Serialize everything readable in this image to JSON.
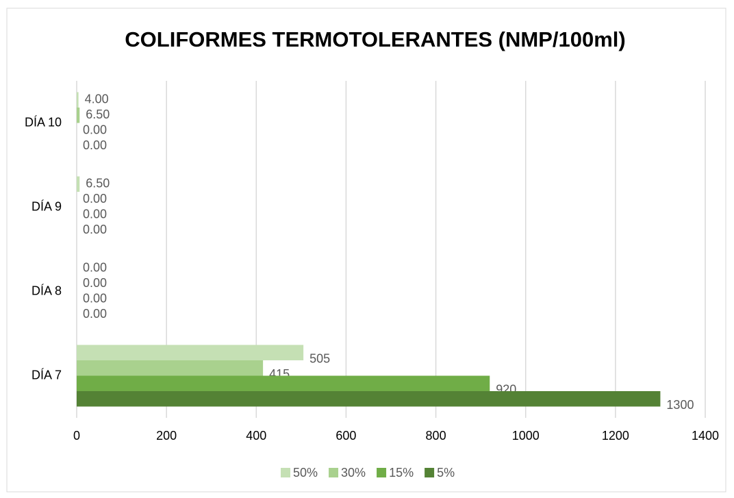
{
  "chart_data": {
    "type": "bar",
    "orientation": "horizontal",
    "title": "COLIFORMES TERMOTOLERANTES (NMP/100ml)",
    "categories": [
      "DÍA 7",
      "DÍA 8",
      "DÍA 9",
      "DÍA 10"
    ],
    "series": [
      {
        "name": "50%",
        "color": "#c5e0b4",
        "values": [
          505,
          0,
          6.5,
          4
        ],
        "value_labels": [
          "505",
          "0.00",
          "6.50",
          "4.00"
        ]
      },
      {
        "name": "30%",
        "color": "#a9d18e",
        "values": [
          415,
          0,
          0,
          6.5
        ],
        "value_labels": [
          "415",
          "0.00",
          "0.00",
          "6.50"
        ]
      },
      {
        "name": "15%",
        "color": "#70ad47",
        "values": [
          920,
          0,
          0,
          0
        ],
        "value_labels": [
          "920",
          "0.00",
          "0.00",
          "0.00"
        ]
      },
      {
        "name": "5%",
        "color": "#548235",
        "values": [
          1300,
          0,
          0,
          0
        ],
        "value_labels": [
          "1300",
          "0.00",
          "0.00",
          "0.00"
        ]
      }
    ],
    "xlim": [
      0,
      1400
    ],
    "xticks": [
      0,
      200,
      400,
      600,
      800,
      1000,
      1200,
      1400
    ],
    "grid": true,
    "legend": "bottom"
  }
}
